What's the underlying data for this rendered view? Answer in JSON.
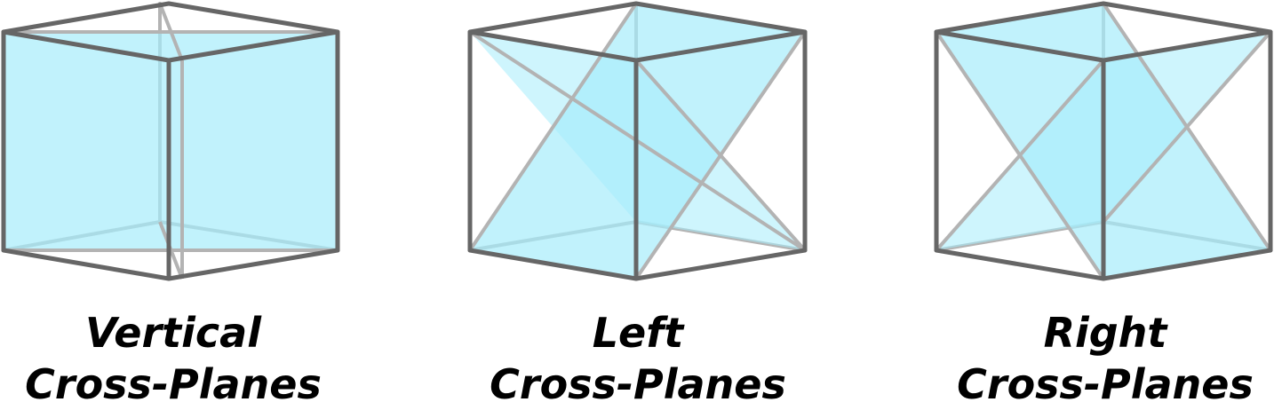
{
  "colors": {
    "plane_fill": "#a6ecfb",
    "plane_overlap": "#86e1f8",
    "edge_front": "#666666",
    "edge_back": "#b3b3b3"
  },
  "cubes": [
    {
      "id": "vertical",
      "plane_type": "vertical",
      "label_line1": "Vertical",
      "label_line2": "Cross-Planes"
    },
    {
      "id": "left",
      "plane_type": "left",
      "label_line1": "Left",
      "label_line2": "Cross-Planes"
    },
    {
      "id": "right",
      "plane_type": "right",
      "label_line1": "Right",
      "label_line2": "Cross-Planes"
    }
  ]
}
